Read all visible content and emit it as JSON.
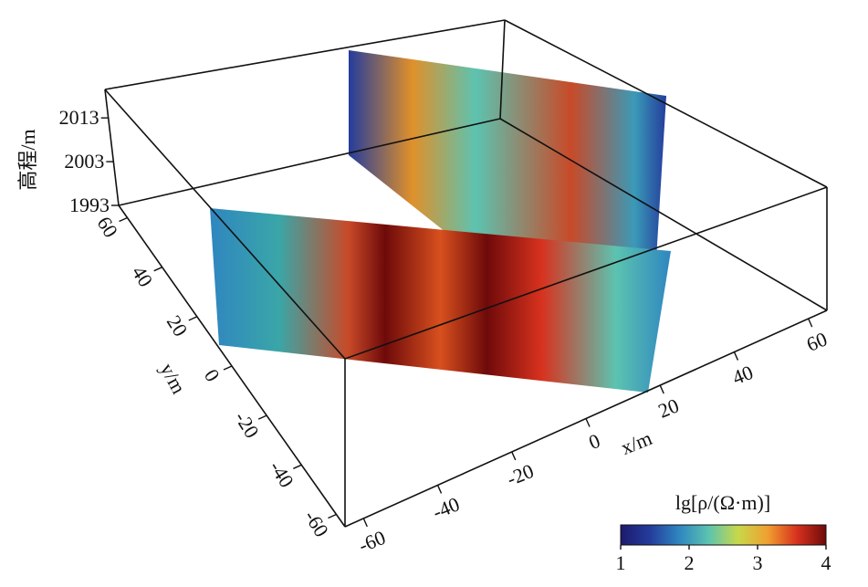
{
  "chart_data": {
    "type": "slice3d",
    "xlabel": "x/m",
    "ylabel": "y/m",
    "zlabel": "高程/m",
    "xlim": [
      -65,
      65
    ],
    "ylim": [
      -65,
      65
    ],
    "zlim": [
      1993,
      2019.5
    ],
    "xticks": [
      -60,
      -40,
      -20,
      0,
      20,
      40,
      60
    ],
    "yticks": [
      -60,
      -40,
      -20,
      0,
      20,
      40,
      60
    ],
    "zticks": [
      1993,
      2003,
      2013
    ],
    "colorbar": {
      "label": "lg[ρ/(Ω·m)]",
      "lim": [
        1,
        4
      ],
      "ticks": [
        1,
        2,
        3,
        4
      ],
      "colors": [
        "#1d1a6e",
        "#243c9c",
        "#2f86c0",
        "#5cc3b0",
        "#c8d84a",
        "#f0a030",
        "#d8321e",
        "#6e0a0a"
      ]
    }
  }
}
